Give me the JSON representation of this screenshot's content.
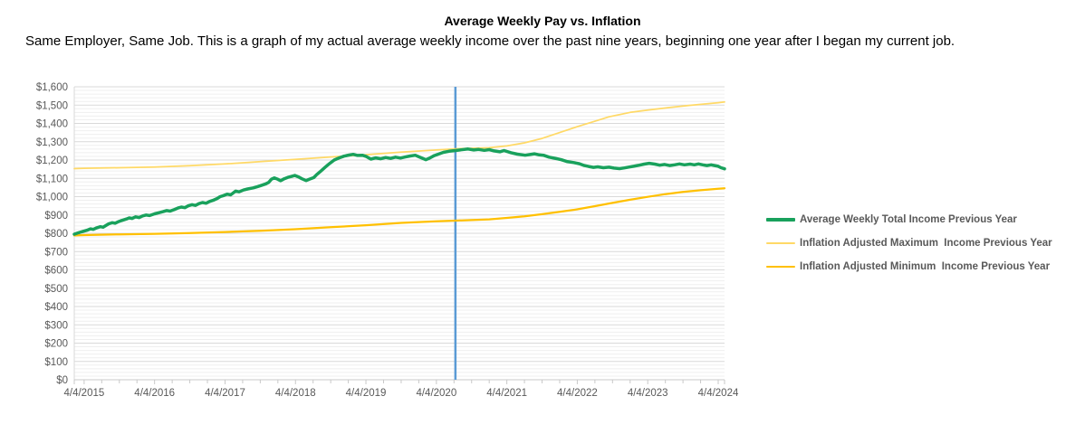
{
  "header": {
    "title": "Average Weekly Pay vs. Inflation",
    "subtitle": "Same Employer, Same Job. This is a graph of my actual average weekly income over the past nine years, beginning one year after I began my current job."
  },
  "colors": {
    "major_grid": "#D9D9D9",
    "minor_grid": "#EFEFEF",
    "axis_line": "#C9C9C9",
    "tick_mark": "#C9C9C9",
    "tick_text": "#595959",
    "legend_text": "#595959",
    "marker_blue": "#5B9BD5",
    "series_green": "#19A15C",
    "series_light_gold": "#FFD966",
    "series_gold": "#FFC000"
  },
  "chart_data": {
    "type": "line",
    "title": "Average Weekly Pay vs. Inflation",
    "x_unit": "years since 4/4/2015",
    "xlim": [
      -0.14,
      9.09
    ],
    "ylim": [
      0,
      1600
    ],
    "y_tick_step": 100,
    "y_minor_step": 20,
    "grid": true,
    "legend_position": "right",
    "y_tick_labels": [
      "$0",
      "$100",
      "$200",
      "$300",
      "$400",
      "$500",
      "$600",
      "$700",
      "$800",
      "$900",
      "$1,000",
      "$1,100",
      "$1,200",
      "$1,300",
      "$1,400",
      "$1,500",
      "$1,600"
    ],
    "x_tick_labels": [
      "4/4/2015",
      "4/4/2016",
      "4/4/2017",
      "4/4/2018",
      "4/4/2019",
      "4/4/2020",
      "4/4/2021",
      "4/4/2022",
      "4/4/2023",
      "4/4/2024"
    ],
    "x_tick_positions": [
      0,
      1,
      2,
      3,
      4,
      5,
      6,
      7,
      8,
      9
    ],
    "x_minor_tick_step": 0.25,
    "marker_line": {
      "x": 5.27,
      "color": "#5B9BD5"
    },
    "series": [
      {
        "name": "Average Weekly Total Income Previous Year",
        "color": "#19A15C",
        "width": 3.5,
        "points": [
          [
            -0.14,
            795
          ],
          [
            -0.08,
            803
          ],
          [
            0,
            812
          ],
          [
            0.05,
            818
          ],
          [
            0.09,
            824
          ],
          [
            0.13,
            821
          ],
          [
            0.18,
            830
          ],
          [
            0.23,
            836
          ],
          [
            0.27,
            833
          ],
          [
            0.32,
            845
          ],
          [
            0.35,
            852
          ],
          [
            0.4,
            858
          ],
          [
            0.44,
            855
          ],
          [
            0.48,
            862
          ],
          [
            0.52,
            868
          ],
          [
            0.56,
            873
          ],
          [
            0.6,
            878
          ],
          [
            0.64,
            884
          ],
          [
            0.68,
            881
          ],
          [
            0.73,
            890
          ],
          [
            0.78,
            886
          ],
          [
            0.83,
            895
          ],
          [
            0.88,
            900
          ],
          [
            0.93,
            897
          ],
          [
            1,
            906
          ],
          [
            1.06,
            912
          ],
          [
            1.12,
            918
          ],
          [
            1.17,
            924
          ],
          [
            1.22,
            921
          ],
          [
            1.28,
            930
          ],
          [
            1.33,
            938
          ],
          [
            1.38,
            943
          ],
          [
            1.43,
            940
          ],
          [
            1.48,
            950
          ],
          [
            1.53,
            956
          ],
          [
            1.58,
            952
          ],
          [
            1.63,
            962
          ],
          [
            1.68,
            968
          ],
          [
            1.73,
            964
          ],
          [
            1.78,
            974
          ],
          [
            1.83,
            980
          ],
          [
            1.89,
            990
          ],
          [
            1.93,
            1000
          ],
          [
            1.98,
            1006
          ],
          [
            2.03,
            1014
          ],
          [
            2.08,
            1010
          ],
          [
            2.15,
            1030
          ],
          [
            2.2,
            1026
          ],
          [
            2.26,
            1036
          ],
          [
            2.32,
            1042
          ],
          [
            2.4,
            1048
          ],
          [
            2.46,
            1055
          ],
          [
            2.52,
            1062
          ],
          [
            2.58,
            1070
          ],
          [
            2.62,
            1078
          ],
          [
            2.66,
            1096
          ],
          [
            2.7,
            1102
          ],
          [
            2.75,
            1095
          ],
          [
            2.79,
            1087
          ],
          [
            2.84,
            1098
          ],
          [
            2.89,
            1105
          ],
          [
            2.94,
            1110
          ],
          [
            2.99,
            1116
          ],
          [
            3.04,
            1108
          ],
          [
            3.09,
            1098
          ],
          [
            3.15,
            1088
          ],
          [
            3.2,
            1096
          ],
          [
            3.26,
            1104
          ],
          [
            3.3,
            1120
          ],
          [
            3.36,
            1140
          ],
          [
            3.42,
            1160
          ],
          [
            3.48,
            1180
          ],
          [
            3.55,
            1200
          ],
          [
            3.62,
            1212
          ],
          [
            3.69,
            1221
          ],
          [
            3.76,
            1227
          ],
          [
            3.82,
            1231
          ],
          [
            3.88,
            1225
          ],
          [
            3.95,
            1226
          ],
          [
            4,
            1220
          ],
          [
            4.07,
            1205
          ],
          [
            4.14,
            1212
          ],
          [
            4.21,
            1207
          ],
          [
            4.28,
            1214
          ],
          [
            4.35,
            1209
          ],
          [
            4.42,
            1216
          ],
          [
            4.49,
            1211
          ],
          [
            4.56,
            1217
          ],
          [
            4.63,
            1222
          ],
          [
            4.7,
            1226
          ],
          [
            4.77,
            1215
          ],
          [
            4.85,
            1202
          ],
          [
            4.9,
            1210
          ],
          [
            4.97,
            1224
          ],
          [
            5.04,
            1234
          ],
          [
            5.1,
            1242
          ],
          [
            5.18,
            1248
          ],
          [
            5.27,
            1252
          ],
          [
            5.35,
            1256
          ],
          [
            5.45,
            1260
          ],
          [
            5.53,
            1255
          ],
          [
            5.6,
            1258
          ],
          [
            5.68,
            1253
          ],
          [
            5.75,
            1257
          ],
          [
            5.82,
            1250
          ],
          [
            5.9,
            1245
          ],
          [
            5.96,
            1252
          ],
          [
            6.06,
            1240
          ],
          [
            6.15,
            1232
          ],
          [
            6.26,
            1226
          ],
          [
            6.33,
            1230
          ],
          [
            6.39,
            1234
          ],
          [
            6.46,
            1228
          ],
          [
            6.52,
            1226
          ],
          [
            6.6,
            1216
          ],
          [
            6.7,
            1208
          ],
          [
            6.77,
            1202
          ],
          [
            6.85,
            1192
          ],
          [
            6.95,
            1186
          ],
          [
            7.03,
            1180
          ],
          [
            7.1,
            1170
          ],
          [
            7.16,
            1165
          ],
          [
            7.23,
            1160
          ],
          [
            7.29,
            1163
          ],
          [
            7.37,
            1158
          ],
          [
            7.45,
            1161
          ],
          [
            7.52,
            1156
          ],
          [
            7.6,
            1153
          ],
          [
            7.67,
            1157
          ],
          [
            7.74,
            1162
          ],
          [
            7.8,
            1166
          ],
          [
            7.88,
            1172
          ],
          [
            7.95,
            1178
          ],
          [
            8.02,
            1182
          ],
          [
            8.1,
            1178
          ],
          [
            8.17,
            1172
          ],
          [
            8.24,
            1176
          ],
          [
            8.31,
            1170
          ],
          [
            8.38,
            1174
          ],
          [
            8.45,
            1179
          ],
          [
            8.52,
            1174
          ],
          [
            8.6,
            1178
          ],
          [
            8.66,
            1174
          ],
          [
            8.72,
            1179
          ],
          [
            8.78,
            1174
          ],
          [
            8.84,
            1170
          ],
          [
            8.9,
            1174
          ],
          [
            8.95,
            1170
          ],
          [
            9,
            1166
          ],
          [
            9.04,
            1158
          ],
          [
            9.09,
            1152
          ]
        ]
      },
      {
        "name": "Inflation Adjusted Maximum  Income Previous Year",
        "color": "#FFD966",
        "width": 1.75,
        "points": [
          [
            -0.14,
            1153
          ],
          [
            0,
            1155
          ],
          [
            0.5,
            1158
          ],
          [
            1,
            1162
          ],
          [
            1.5,
            1169
          ],
          [
            2,
            1179
          ],
          [
            2.5,
            1191
          ],
          [
            3,
            1204
          ],
          [
            3.5,
            1217
          ],
          [
            4,
            1229
          ],
          [
            4.5,
            1243
          ],
          [
            5,
            1255
          ],
          [
            5.27,
            1261
          ],
          [
            5.5,
            1264
          ],
          [
            5.75,
            1267
          ],
          [
            6,
            1277
          ],
          [
            6.25,
            1294
          ],
          [
            6.5,
            1318
          ],
          [
            6.75,
            1350
          ],
          [
            7,
            1382
          ],
          [
            7.25,
            1412
          ],
          [
            7.45,
            1436
          ],
          [
            7.75,
            1460
          ],
          [
            8,
            1473
          ],
          [
            8.31,
            1487
          ],
          [
            8.6,
            1499
          ],
          [
            9,
            1513
          ],
          [
            9.09,
            1517
          ]
        ]
      },
      {
        "name": "Inflation Adjusted Minimum  Income Previous Year",
        "color": "#FFC000",
        "width": 2.25,
        "points": [
          [
            -0.14,
            788
          ],
          [
            0,
            790
          ],
          [
            0.5,
            794
          ],
          [
            1,
            797
          ],
          [
            1.5,
            801
          ],
          [
            2,
            807
          ],
          [
            2.5,
            814
          ],
          [
            3,
            822
          ],
          [
            3.5,
            833
          ],
          [
            4,
            844
          ],
          [
            4.5,
            857
          ],
          [
            5,
            865
          ],
          [
            5.27,
            869
          ],
          [
            5.5,
            872
          ],
          [
            5.75,
            876
          ],
          [
            6,
            884
          ],
          [
            6.25,
            893
          ],
          [
            6.5,
            904
          ],
          [
            6.75,
            917
          ],
          [
            7,
            931
          ],
          [
            7.25,
            948
          ],
          [
            7.5,
            966
          ],
          [
            7.75,
            983
          ],
          [
            8,
            999
          ],
          [
            8.25,
            1014
          ],
          [
            8.5,
            1026
          ],
          [
            8.75,
            1035
          ],
          [
            9,
            1043
          ],
          [
            9.09,
            1046
          ]
        ]
      }
    ]
  }
}
